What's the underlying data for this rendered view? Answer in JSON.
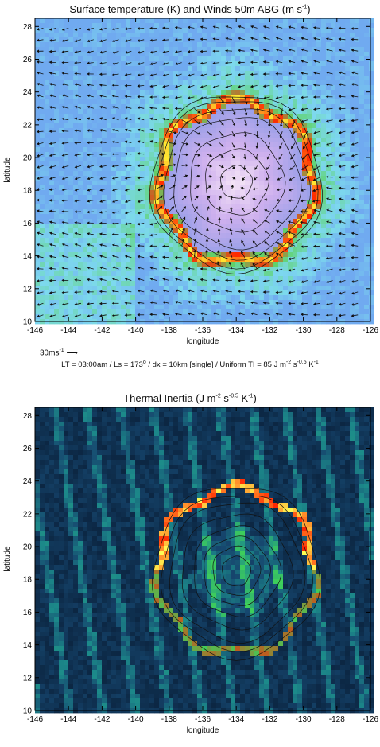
{
  "figure": {
    "caption_parts": {
      "lt": "LT = 03:00am",
      "ls": "Ls = 173",
      "dx": "dx = 10km [single]",
      "ti_prefix": "Uniform TI = 85 J m",
      "ti_exp1": "-2",
      "ti_mid": " s",
      "ti_exp2": "-0.5",
      "ti_end": " K",
      "ti_exp3": "-1"
    },
    "ref_vector": {
      "label": "30ms",
      "exp": "-1",
      "arrow": "⟶"
    }
  },
  "chart_data": [
    {
      "type": "heatmap",
      "title": "Surface temperature (K) and Winds 50m ABG (m s⁻¹)",
      "title_parts": {
        "main": "Surface temperature (K) and Winds 50m ABG (m s",
        "exp": "-1",
        "close": ")"
      },
      "xlabel": "longitude",
      "ylabel": "latitude",
      "xlim": [
        -146,
        -126
      ],
      "ylim": [
        10,
        28.5
      ],
      "xticks": [
        -146,
        -144,
        -142,
        -140,
        -138,
        -136,
        -134,
        -132,
        -130,
        -128,
        -126
      ],
      "yticks": [
        10,
        12,
        14,
        16,
        18,
        20,
        22,
        24,
        26,
        28
      ],
      "colors": {
        "cool": "#7dd9ee",
        "mid": "#5fd36b",
        "warm": "#ff2a00",
        "hot": "#ffee33",
        "crater": "#9ba0e8",
        "center": "#f4e3f6"
      },
      "features": {
        "ring_center": [
          -134,
          18.5
        ],
        "ring_radius_lon": 4.7,
        "ring_radius_lat": 5.0
      },
      "overlay": "wind vectors"
    },
    {
      "type": "heatmap",
      "title": "Thermal Inertia (J m⁻² s⁻⁰·⁵ K⁻¹)",
      "title_parts": {
        "main": "Thermal Inertia (J m",
        "exp1": "-2",
        "mid1": " s",
        "exp2": "-0.5",
        "mid2": " K",
        "exp3": "-1",
        "close": ")"
      },
      "xlabel": "longitude",
      "ylabel": "latitude",
      "xlim": [
        -146,
        -126
      ],
      "ylim": [
        10,
        28.5
      ],
      "xticks": [
        -146,
        -144,
        -142,
        -140,
        -138,
        -136,
        -134,
        -132,
        -130,
        -128,
        -126
      ],
      "yticks": [
        10,
        12,
        14,
        16,
        18,
        20,
        22,
        24,
        26,
        28
      ],
      "colors": {
        "low": "#081b33",
        "mid": "#1c8a8a",
        "high": "#3fd05a",
        "peak": "#ff2200",
        "top": "#ffff55"
      },
      "features": {
        "ring_center": [
          -134,
          18.5
        ],
        "ring_radius_lon": 4.7,
        "ring_radius_lat": 5.0
      },
      "overlay": "topography contours"
    }
  ]
}
